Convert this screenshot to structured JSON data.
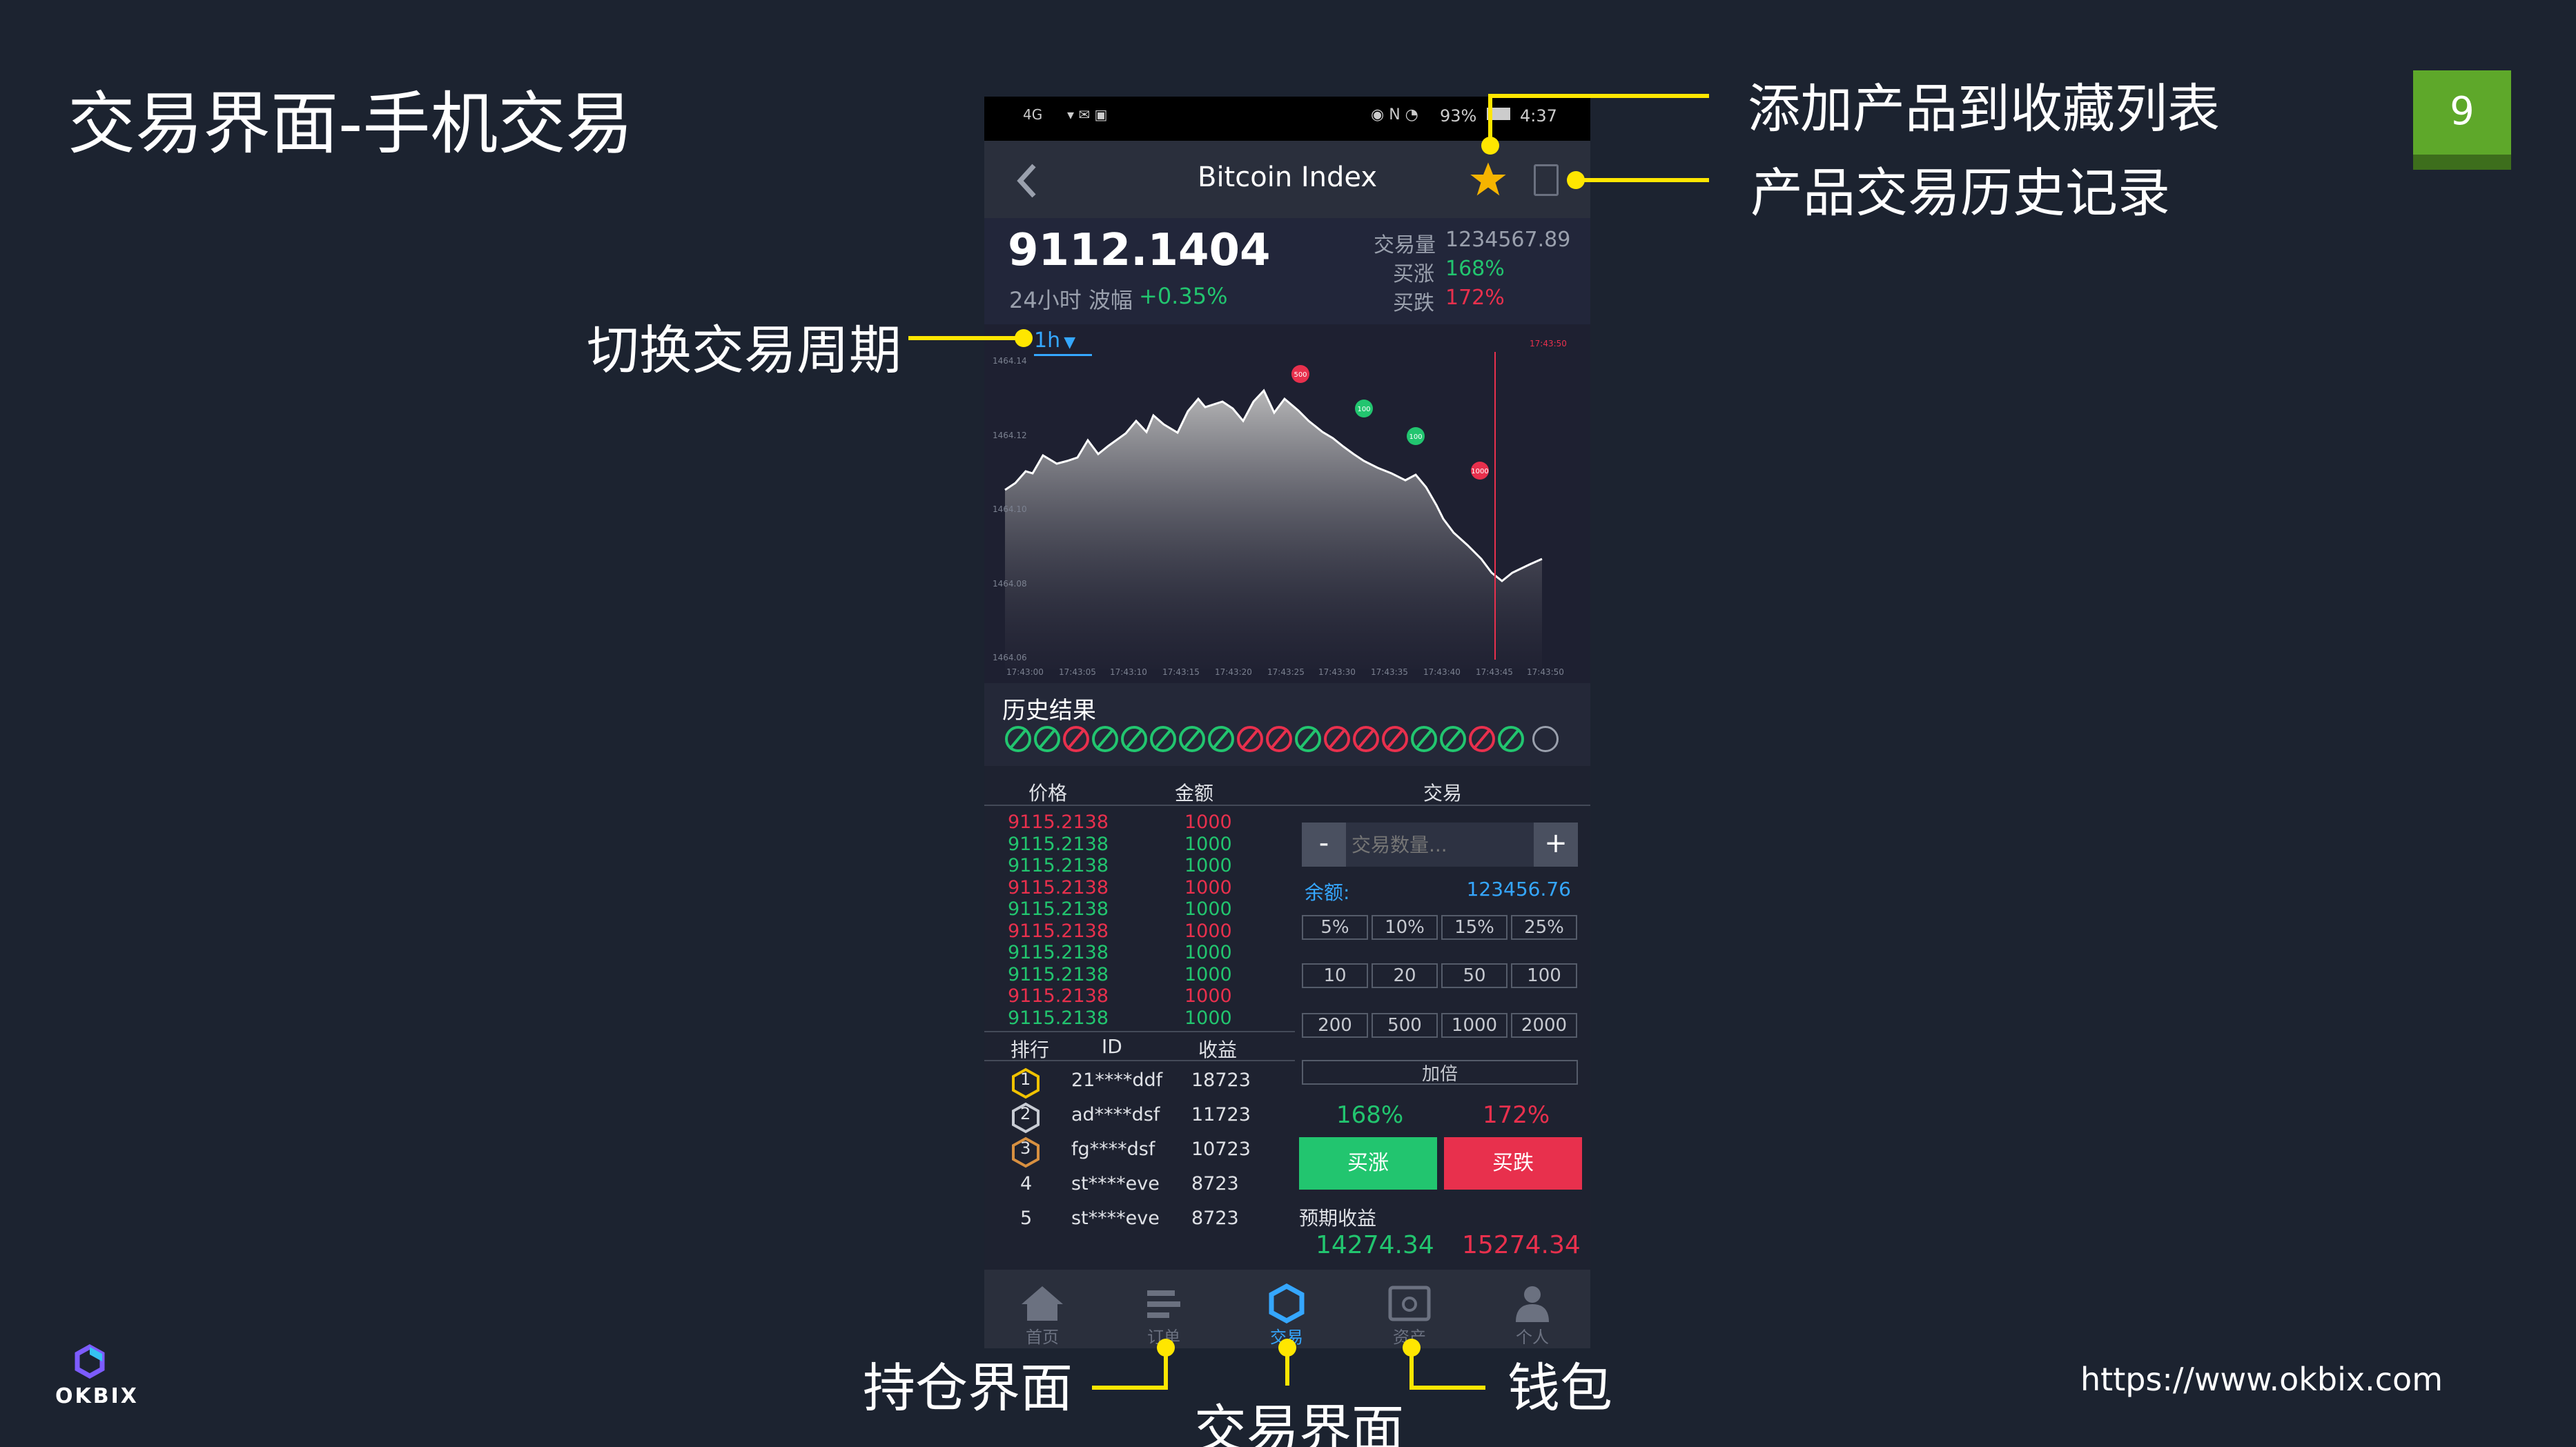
{
  "slide": {
    "title": "交易界面-手机交易",
    "page_number": "9",
    "url": "https://www.okbix.com",
    "logo_text": "OKBIX"
  },
  "annotations": {
    "favorite": "添加产品到收藏列表",
    "history_record": "产品交易历史记录",
    "period": "切换交易周期",
    "positions": "持仓界面",
    "trade": "交易界面",
    "wallet": "钱包"
  },
  "phone": {
    "status_bar": {
      "signal": "4G",
      "battery": "93%",
      "time": "4:37"
    },
    "header": {
      "title": "Bitcoin Index"
    },
    "price": {
      "value": "9112.1404",
      "change_label": "24小时 波幅",
      "change_value": "+0.35%",
      "volume_label": "交易量",
      "volume_value": "1234567.89",
      "up_label": "买涨",
      "up_value": "168%",
      "down_label": "买跌",
      "down_value": "172%"
    },
    "period": {
      "value": "1h"
    },
    "chart_data": {
      "type": "area",
      "ylabels": [
        "1464.14",
        "1464.12",
        "1464.10",
        "1464.08",
        "1464.06"
      ],
      "xlabels": [
        "17:43:00",
        "17:43:05",
        "17:43:10",
        "17:43:15",
        "17:43:20",
        "17:43:25",
        "17:43:30",
        "17:43:35",
        "17:43:40",
        "17:43:45",
        "17:43:50"
      ],
      "current_time": "17:43:50",
      "markers": [
        "500",
        "100",
        "100",
        "1000"
      ]
    },
    "history": {
      "label": "历史结果",
      "results": [
        "up",
        "up",
        "down",
        "up",
        "up",
        "up",
        "up",
        "up",
        "down",
        "down",
        "up",
        "down",
        "down",
        "down",
        "up",
        "up",
        "down",
        "up"
      ]
    },
    "orderbook": {
      "headers": [
        "价格",
        "金额"
      ],
      "rows": [
        [
          "9115.2138",
          "1000",
          "red"
        ],
        [
          "9115.2138",
          "1000",
          "green"
        ],
        [
          "9115.2138",
          "1000",
          "green"
        ],
        [
          "9115.2138",
          "1000",
          "red"
        ],
        [
          "9115.2138",
          "1000",
          "green"
        ],
        [
          "9115.2138",
          "1000",
          "red"
        ],
        [
          "9115.2138",
          "1000",
          "green"
        ],
        [
          "9115.2138",
          "1000",
          "green"
        ],
        [
          "9115.2138",
          "1000",
          "red"
        ],
        [
          "9115.2138",
          "1000",
          "green"
        ]
      ]
    },
    "ranking": {
      "headers": [
        "排行",
        "ID",
        "收益"
      ],
      "rows": [
        [
          "1",
          "21****ddf",
          "18723"
        ],
        [
          "2",
          "ad****dsf",
          "11723"
        ],
        [
          "3",
          "fg****dsf",
          "10723"
        ],
        [
          "4",
          "st****eve",
          "8723"
        ],
        [
          "5",
          "st****eve",
          "8723"
        ]
      ]
    },
    "trade": {
      "header": "交易",
      "minus": "-",
      "plus": "+",
      "qty_placeholder": "交易数量...",
      "balance_label": "余额:",
      "balance_value": "123456.76",
      "percent_options": [
        "5%",
        "10%",
        "15%",
        "25%"
      ],
      "amount_row1": [
        "10",
        "20",
        "50",
        "100"
      ],
      "amount_row2": [
        "200",
        "500",
        "1000",
        "2000"
      ],
      "double_label": "加倍",
      "up_pct": "168%",
      "down_pct": "172%",
      "buy_up": "买涨",
      "buy_down": "买跌",
      "expected_label": "预期收益",
      "expected_up": "14274.34",
      "expected_down": "15274.34"
    },
    "tabbar": [
      "首页",
      "订单",
      "交易",
      "资产",
      "个人"
    ]
  },
  "colors": {
    "green": "#22c56f",
    "red": "#e8304d",
    "accent": "#ffe600",
    "page_badge": "#5ea82a"
  }
}
